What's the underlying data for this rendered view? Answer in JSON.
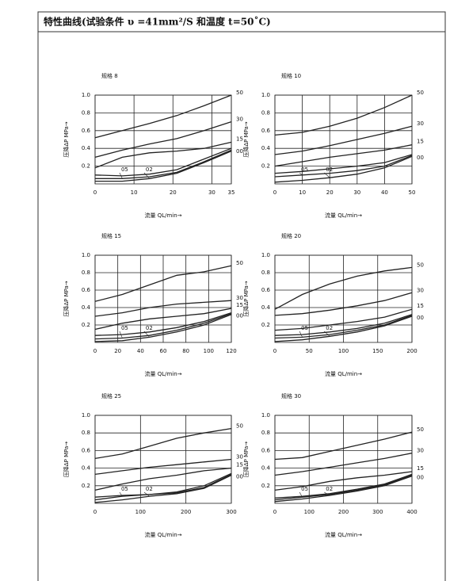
{
  "header": {
    "title": "特性曲线(试验条件 υ =41mm²/S 和温度 t=50˚C)"
  },
  "chart_data": [
    {
      "type": "line",
      "title": "规格 8",
      "xlabel": "流量 QL/min→",
      "ylabel": "压降ΔP MPa→",
      "color": "#222222",
      "xlim": [
        0,
        35
      ],
      "xticks": [
        0,
        10,
        20,
        30,
        35
      ],
      "ylim": [
        0,
        1
      ],
      "yticks": [
        0.2,
        0.4,
        0.6,
        0.8,
        {
          "value": 1,
          "label": "1.0"
        }
      ],
      "grid": true,
      "x": [
        0,
        7,
        14,
        21,
        28,
        35
      ],
      "series": [
        {
          "name": "50",
          "values": [
            0.52,
            0.6,
            0.68,
            0.77,
            0.88,
            1.0
          ]
        },
        {
          "name": "30",
          "values": [
            0.3,
            0.38,
            0.45,
            0.51,
            0.6,
            0.7
          ]
        },
        {
          "name": "15",
          "values": [
            0.18,
            0.3,
            0.35,
            0.37,
            0.4,
            0.47
          ]
        },
        {
          "name": "00",
          "values": [
            0.1,
            0.09,
            0.11,
            0.16,
            0.28,
            0.4
          ]
        },
        {
          "name": "05",
          "values": [
            0.06,
            0.06,
            0.08,
            0.13,
            0.25,
            0.38
          ]
        },
        {
          "name": "02",
          "values": [
            0.03,
            0.03,
            0.06,
            0.12,
            0.24,
            0.37
          ]
        }
      ]
    },
    {
      "type": "line",
      "title": "规格 10",
      "xlabel": "流量 QL/min→",
      "ylabel": "压降ΔP MPa→",
      "color": "#222222",
      "xlim": [
        0,
        50
      ],
      "xticks": [
        0,
        10,
        20,
        30,
        40,
        50
      ],
      "ylim": [
        0,
        1
      ],
      "yticks": [
        0.2,
        0.4,
        0.6,
        0.8,
        {
          "value": 1,
          "label": "1.0"
        }
      ],
      "grid": true,
      "x": [
        0,
        10,
        20,
        30,
        40,
        50
      ],
      "series": [
        {
          "name": "50",
          "values": [
            0.55,
            0.58,
            0.65,
            0.74,
            0.86,
            1.0
          ]
        },
        {
          "name": "30",
          "values": [
            0.33,
            0.37,
            0.43,
            0.5,
            0.57,
            0.65
          ]
        },
        {
          "name": "15",
          "values": [
            0.2,
            0.25,
            0.3,
            0.34,
            0.38,
            0.44
          ]
        },
        {
          "name": "00",
          "values": [
            0.12,
            0.14,
            0.17,
            0.2,
            0.24,
            0.33
          ]
        },
        {
          "name": "05",
          "values": [
            0.08,
            0.1,
            0.12,
            0.15,
            0.2,
            0.32
          ]
        },
        {
          "name": "02",
          "values": [
            0.02,
            0.04,
            0.07,
            0.11,
            0.18,
            0.31
          ]
        }
      ]
    },
    {
      "type": "line",
      "title": "规格 15",
      "xlabel": "流量 QL/min→",
      "ylabel": "压降ΔP MPa→",
      "color": "#222222",
      "xlim": [
        0,
        120
      ],
      "xticks": [
        0,
        20,
        40,
        60,
        80,
        100,
        120
      ],
      "ylim": [
        0,
        1
      ],
      "yticks": [
        0.2,
        0.4,
        0.6,
        0.8,
        {
          "value": 1,
          "label": "1.0"
        }
      ],
      "grid": true,
      "x": [
        0,
        24,
        48,
        72,
        96,
        120
      ],
      "series": [
        {
          "name": "50",
          "values": [
            0.47,
            0.55,
            0.66,
            0.77,
            0.81,
            0.88
          ]
        },
        {
          "name": "30",
          "values": [
            0.3,
            0.34,
            0.4,
            0.44,
            0.46,
            0.48
          ]
        },
        {
          "name": "15",
          "values": [
            0.15,
            0.22,
            0.27,
            0.3,
            0.33,
            0.39
          ]
        },
        {
          "name": "00",
          "values": [
            0.08,
            0.09,
            0.12,
            0.17,
            0.24,
            0.34
          ]
        },
        {
          "name": "05",
          "values": [
            0.04,
            0.05,
            0.08,
            0.14,
            0.22,
            0.33
          ]
        },
        {
          "name": "02",
          "values": [
            0.01,
            0.02,
            0.06,
            0.12,
            0.2,
            0.32
          ]
        }
      ]
    },
    {
      "type": "line",
      "title": "规格 20",
      "xlabel": "流量 QL/min→",
      "ylabel": "压降ΔP MPa→",
      "color": "#222222",
      "xlim": [
        0,
        200
      ],
      "xticks": [
        0,
        50,
        100,
        150,
        200
      ],
      "ylim": [
        0,
        1
      ],
      "yticks": [
        0.2,
        0.4,
        0.6,
        0.8,
        {
          "value": 1,
          "label": "1.0"
        }
      ],
      "grid": true,
      "x": [
        0,
        40,
        80,
        120,
        160,
        200
      ],
      "series": [
        {
          "name": "50",
          "values": [
            0.38,
            0.55,
            0.67,
            0.76,
            0.82,
            0.86
          ]
        },
        {
          "name": "30",
          "values": [
            0.31,
            0.33,
            0.37,
            0.42,
            0.48,
            0.57
          ]
        },
        {
          "name": "15",
          "values": [
            0.14,
            0.16,
            0.2,
            0.24,
            0.29,
            0.38
          ]
        },
        {
          "name": "00",
          "values": [
            0.08,
            0.09,
            0.12,
            0.16,
            0.22,
            0.32
          ]
        },
        {
          "name": "05",
          "values": [
            0.05,
            0.06,
            0.09,
            0.14,
            0.2,
            0.31
          ]
        },
        {
          "name": "02",
          "values": [
            0.01,
            0.03,
            0.07,
            0.12,
            0.19,
            0.3
          ]
        }
      ]
    },
    {
      "type": "line",
      "title": "规格 25",
      "xlabel": "流量 QL/min→",
      "ylabel": "压降ΔP MPa→",
      "color": "#222222",
      "xlim": [
        0,
        300
      ],
      "xticks": [
        0,
        100,
        200,
        300
      ],
      "ylim": [
        0,
        1
      ],
      "yticks": [
        0.2,
        0.4,
        0.6,
        0.8,
        {
          "value": 1,
          "label": "1.0"
        }
      ],
      "grid": true,
      "x": [
        0,
        60,
        120,
        180,
        240,
        300
      ],
      "series": [
        {
          "name": "50",
          "values": [
            0.51,
            0.56,
            0.65,
            0.74,
            0.8,
            0.85
          ]
        },
        {
          "name": "30",
          "values": [
            0.33,
            0.37,
            0.41,
            0.44,
            0.47,
            0.5
          ]
        },
        {
          "name": "15",
          "values": [
            0.15,
            0.22,
            0.28,
            0.32,
            0.37,
            0.4
          ]
        },
        {
          "name": "00",
          "values": [
            0.07,
            0.09,
            0.1,
            0.13,
            0.2,
            0.34
          ]
        },
        {
          "name": "05",
          "values": [
            0.04,
            0.08,
            0.1,
            0.12,
            0.18,
            0.33
          ]
        },
        {
          "name": "02",
          "values": [
            0.01,
            0.04,
            0.08,
            0.11,
            0.17,
            0.32
          ]
        }
      ]
    },
    {
      "type": "line",
      "title": "规格 30",
      "xlabel": "流量 QL/min→",
      "ylabel": "压降ΔP MPa→",
      "color": "#222222",
      "xlim": [
        0,
        400
      ],
      "xticks": [
        0,
        100,
        200,
        300,
        400
      ],
      "ylim": [
        0,
        1
      ],
      "yticks": [
        0.2,
        0.4,
        0.6,
        0.8,
        {
          "value": 1,
          "label": "1.0"
        }
      ],
      "grid": true,
      "x": [
        0,
        80,
        160,
        240,
        320,
        400
      ],
      "series": [
        {
          "name": "50",
          "values": [
            0.5,
            0.52,
            0.59,
            0.66,
            0.73,
            0.81
          ]
        },
        {
          "name": "30",
          "values": [
            0.32,
            0.36,
            0.41,
            0.46,
            0.51,
            0.57
          ]
        },
        {
          "name": "15",
          "values": [
            0.15,
            0.19,
            0.25,
            0.29,
            0.32,
            0.36
          ]
        },
        {
          "name": "00",
          "values": [
            0.06,
            0.08,
            0.11,
            0.16,
            0.22,
            0.33
          ]
        },
        {
          "name": "05",
          "values": [
            0.04,
            0.07,
            0.1,
            0.15,
            0.21,
            0.32
          ]
        },
        {
          "name": "02",
          "values": [
            0.02,
            0.05,
            0.09,
            0.14,
            0.2,
            0.31
          ]
        }
      ]
    }
  ]
}
